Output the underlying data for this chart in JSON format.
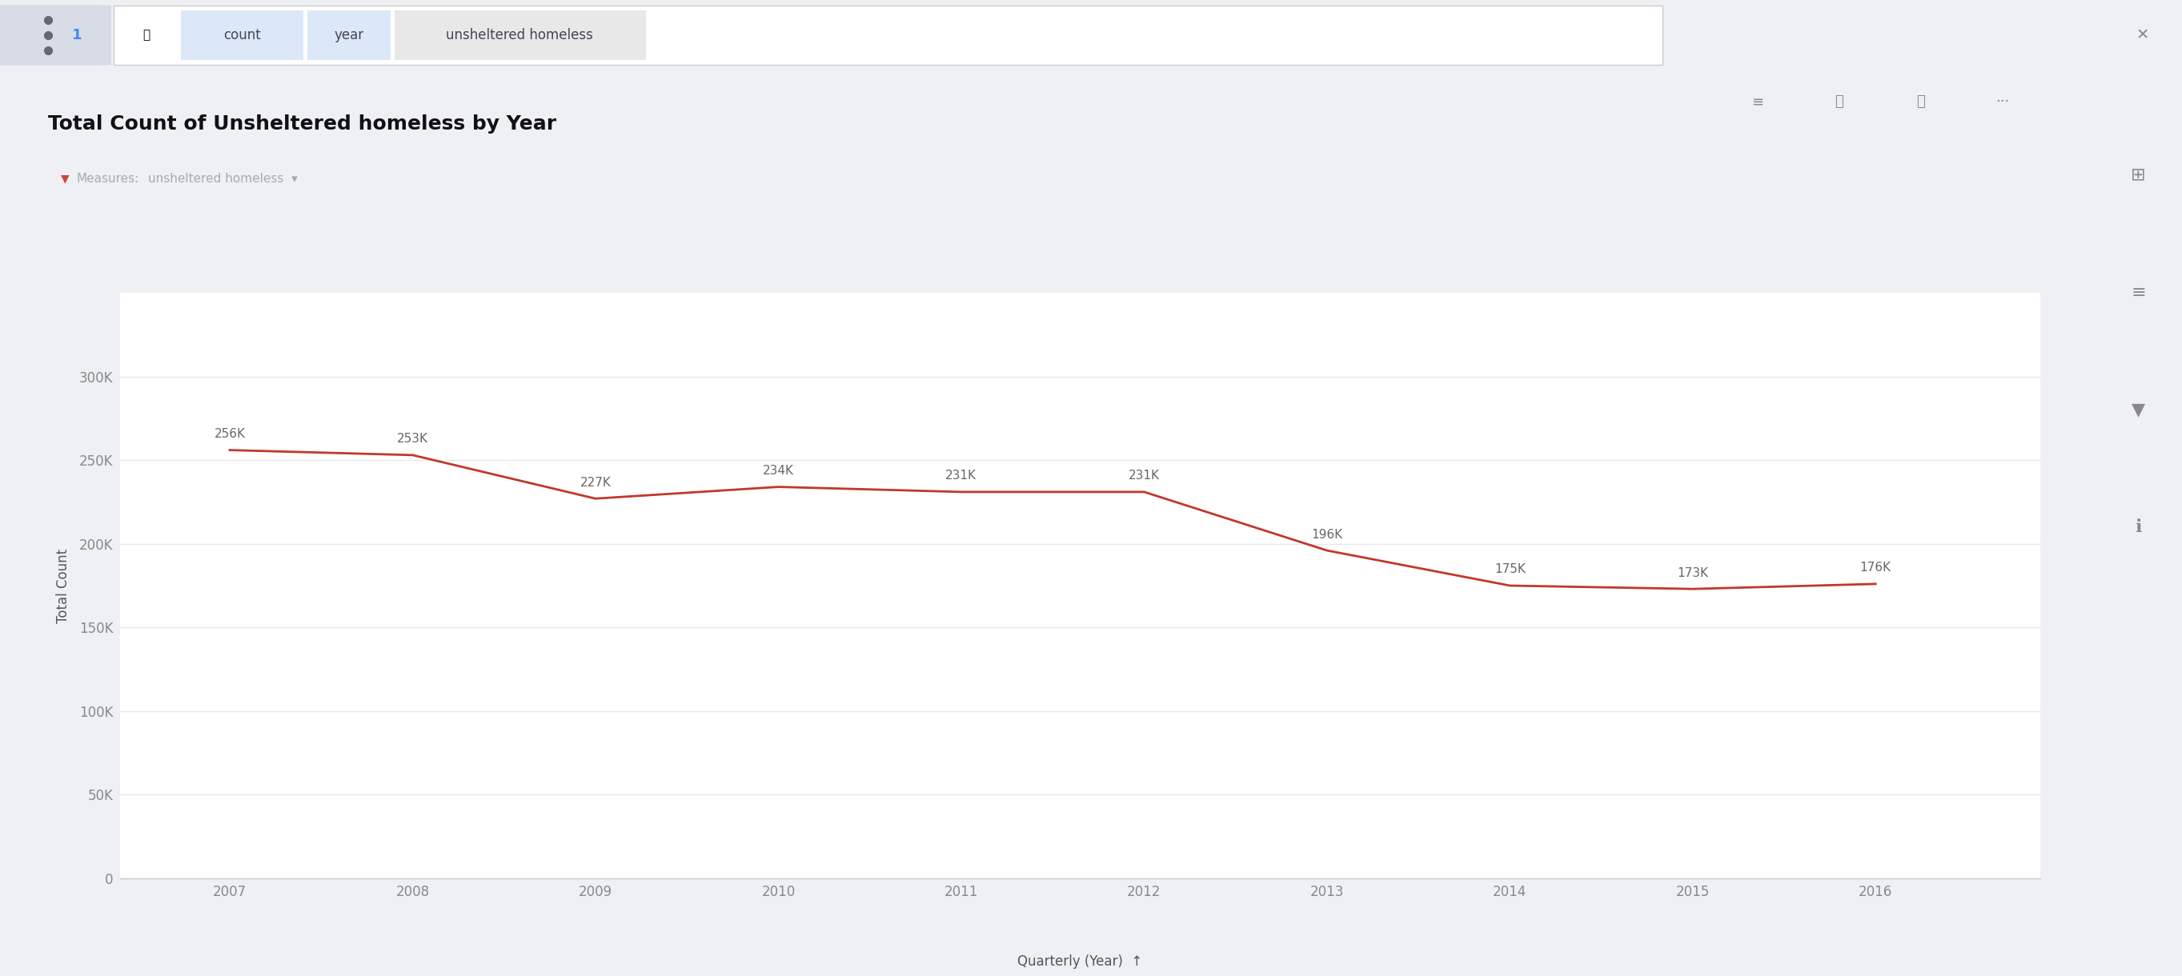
{
  "title": "Total Count of Unsheltered homeless by Year",
  "xlabel": "Quarterly (Year)",
  "ylabel": "Total Count",
  "years": [
    2007,
    2008,
    2009,
    2010,
    2011,
    2012,
    2013,
    2014,
    2015,
    2016
  ],
  "values": [
    256000,
    253000,
    227000,
    234000,
    231000,
    231000,
    196000,
    175000,
    173000,
    176000
  ],
  "labels": [
    "256K",
    "253K",
    "227K",
    "234K",
    "231K",
    "231K",
    "196K",
    "175K",
    "173K",
    "176K"
  ],
  "line_color": "#c0392b",
  "ylim": [
    0,
    350000
  ],
  "yticks": [
    0,
    50000,
    100000,
    150000,
    200000,
    250000,
    300000
  ],
  "ytick_labels": [
    "0",
    "50K",
    "100K",
    "150K",
    "200K",
    "250K",
    "300K"
  ],
  "bg_outer": "#eef0f4",
  "bg_white": "#ffffff",
  "title_fontsize": 18,
  "label_fontsize": 12,
  "tick_fontsize": 12,
  "annot_fontsize": 11,
  "grid_color": "#e8e8e8",
  "measures_text": "Measures:",
  "measures_filter": "unsheltered homeless",
  "nav_bg": "#eef0f4",
  "search_bg": "#ffffff",
  "tag_count_bg": "#dce8f8",
  "tag_year_bg": "#dce8f8",
  "tag_unsheltered_bg": "#e8e8e8",
  "axis_label_color": "#555555",
  "tick_color": "#888888",
  "measures_color": "#aaaaaa",
  "filter_color": "#aaaaaa"
}
